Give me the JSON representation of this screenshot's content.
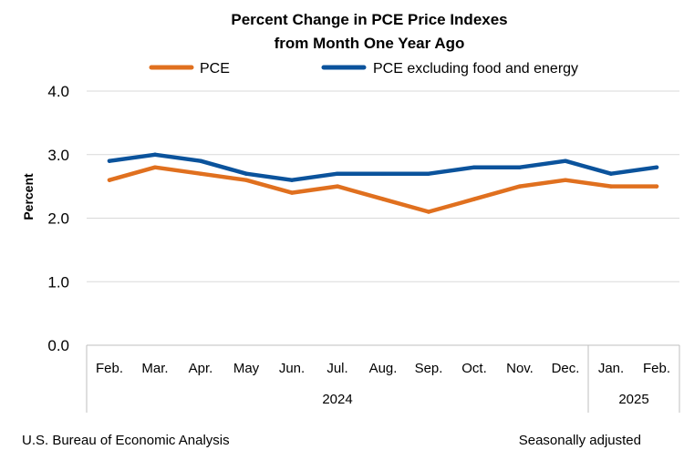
{
  "chart_data": {
    "type": "line",
    "title_lines": [
      "Percent Change in PCE Price Indexes",
      "from Month One Year Ago"
    ],
    "ylabel": "Percent",
    "xlabel": "",
    "ylim": [
      0,
      4
    ],
    "y_ticks": [
      "0.0",
      "1.0",
      "2.0",
      "3.0",
      "4.0"
    ],
    "grid": "horizontal",
    "legend_position": "top",
    "categories": [
      "Feb.",
      "Mar.",
      "Apr.",
      "May",
      "Jun.",
      "Jul.",
      "Aug.",
      "Sep.",
      "Oct.",
      "Nov.",
      "Dec.",
      "Jan.",
      "Feb."
    ],
    "year_groups": [
      {
        "label": "2024",
        "count": 11
      },
      {
        "label": "2025",
        "count": 2
      }
    ],
    "series": [
      {
        "name": "PCE",
        "color": "#E0701F",
        "values": [
          2.6,
          2.8,
          2.7,
          2.6,
          2.4,
          2.5,
          2.3,
          2.1,
          2.3,
          2.5,
          2.6,
          2.5,
          2.5
        ]
      },
      {
        "name": "PCE excluding food and energy",
        "color": "#0B539C",
        "values": [
          2.9,
          3.0,
          2.9,
          2.7,
          2.6,
          2.7,
          2.7,
          2.7,
          2.8,
          2.8,
          2.9,
          2.7,
          2.8
        ]
      }
    ],
    "source": "U.S. Bureau of Economic Analysis",
    "note": "Seasonally adjusted"
  }
}
